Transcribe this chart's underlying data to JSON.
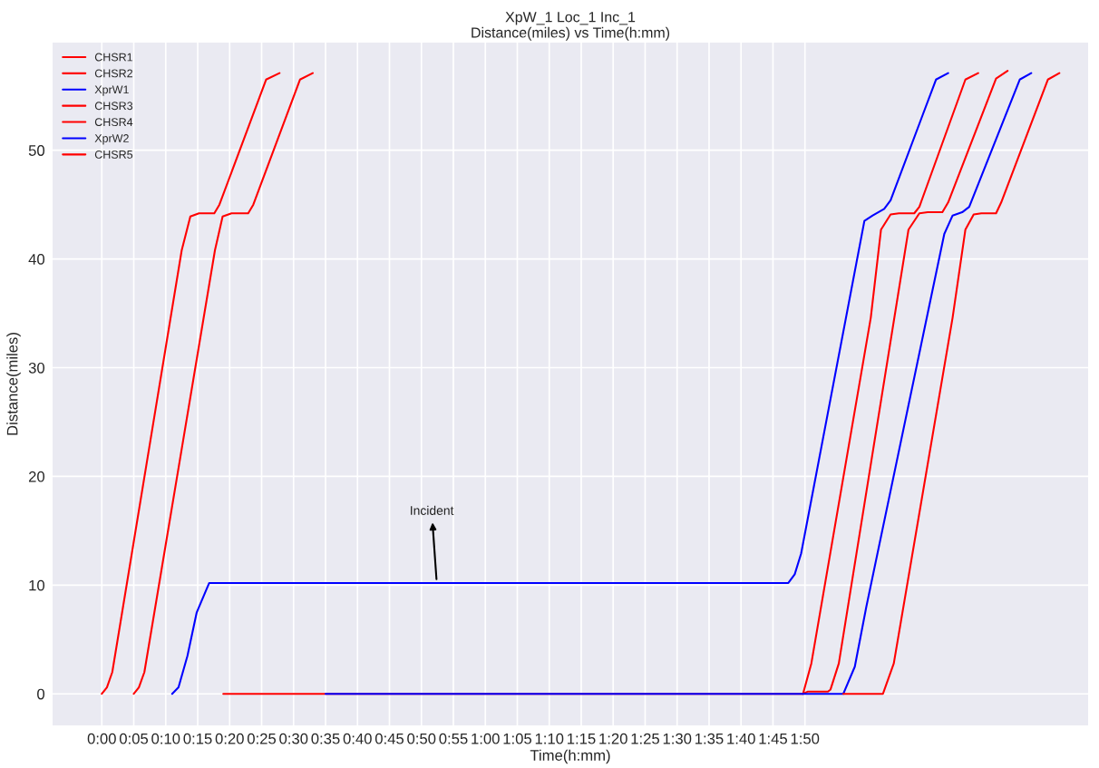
{
  "chart_data": {
    "type": "line",
    "title": "XpW_1 Loc_1 Inc_1",
    "subtitle": "Distance(miles) vs Time(h:mm)",
    "xlabel": "Time(h:mm)",
    "ylabel": "Distance(miles)",
    "xlim": [
      -7.7,
      154.3
    ],
    "ylim": [
      -2.9,
      59.9
    ],
    "xticks": [
      {
        "value": 0,
        "label": "0:00"
      },
      {
        "value": 5,
        "label": "0:05"
      },
      {
        "value": 10,
        "label": "0:10"
      },
      {
        "value": 15,
        "label": "0:15"
      },
      {
        "value": 20,
        "label": "0:20"
      },
      {
        "value": 25,
        "label": "0:25"
      },
      {
        "value": 30,
        "label": "0:30"
      },
      {
        "value": 35,
        "label": "0:35"
      },
      {
        "value": 40,
        "label": "0:40"
      },
      {
        "value": 45,
        "label": "0:45"
      },
      {
        "value": 50,
        "label": "0:50"
      },
      {
        "value": 55,
        "label": "0:55"
      },
      {
        "value": 60,
        "label": "1:00"
      },
      {
        "value": 65,
        "label": "1:05"
      },
      {
        "value": 70,
        "label": "1:10"
      },
      {
        "value": 75,
        "label": "1:15"
      },
      {
        "value": 80,
        "label": "1:20"
      },
      {
        "value": 85,
        "label": "1:25"
      },
      {
        "value": 90,
        "label": "1:30"
      },
      {
        "value": 95,
        "label": "1:35"
      },
      {
        "value": 100,
        "label": "1:40"
      },
      {
        "value": 105,
        "label": "1:45"
      },
      {
        "value": 110,
        "label": "1:50"
      }
    ],
    "yticks": [
      0,
      10,
      20,
      30,
      40,
      50
    ],
    "grid": true,
    "legend": "top left",
    "annotations": [
      {
        "text": "Incident",
        "x": 52.4,
        "y": 10.2
      }
    ],
    "series": [
      {
        "name": "CHSR1",
        "color": "#ff0000",
        "x": [
          0,
          0.8,
          1.64,
          12.5,
          13.85,
          15.2,
          17.6,
          18.4,
          25.7,
          27.8
        ],
        "values": [
          0,
          0.6,
          2.0,
          40.8,
          43.9,
          44.2,
          44.2,
          45.0,
          56.5,
          57.1
        ]
      },
      {
        "name": "CHSR2",
        "color": "#ff0000",
        "x": [
          5.0,
          5.8,
          6.66,
          17.7,
          18.9,
          20.3,
          22.9,
          23.7,
          31.0,
          33.0
        ],
        "values": [
          0,
          0.6,
          2.0,
          40.8,
          43.9,
          44.2,
          44.2,
          45.0,
          56.5,
          57.1
        ]
      },
      {
        "name": "XprW1",
        "color": "#0000ff",
        "x": [
          11.0,
          12.0,
          13.4,
          14.85,
          16.8,
          107.4,
          108.4,
          109.4,
          119.3,
          120.6,
          122.4,
          123.4,
          130.5,
          132.4
        ],
        "values": [
          0,
          0.6,
          3.5,
          7.5,
          10.2,
          10.2,
          11.0,
          12.9,
          43.5,
          44.0,
          44.6,
          45.4,
          56.5,
          57.1
        ]
      },
      {
        "name": "CHSR3",
        "color": "#ff0000",
        "x": [
          19.0,
          109.7,
          111.0,
          120.3,
          121.9,
          123.4,
          124.7,
          127.1,
          127.9,
          135.1,
          137.1
        ],
        "values": [
          0,
          0,
          2.8,
          34.6,
          42.7,
          44.1,
          44.2,
          44.2,
          44.8,
          56.5,
          57.1
        ]
      },
      {
        "name": "CHSR4",
        "color": "#ff0000",
        "x": [
          109.7,
          110.4,
          113.6,
          114.0,
          115.3,
          126.2,
          127.9,
          129.2,
          131.5,
          132.4,
          139.9,
          141.7
        ],
        "values": [
          0,
          0.2,
          0.2,
          0.4,
          2.8,
          42.7,
          44.2,
          44.3,
          44.3,
          45.2,
          56.6,
          57.3
        ]
      },
      {
        "name": "XprW2",
        "color": "#0000ff",
        "x": [
          35.0,
          116.0,
          117.8,
          119.6,
          131.8,
          133.1,
          134.6,
          135.7,
          143.6,
          145.4
        ],
        "values": [
          0,
          0,
          2.5,
          8.0,
          42.3,
          44.0,
          44.3,
          44.8,
          56.5,
          57.1
        ]
      },
      {
        "name": "CHSR5",
        "color": "#ff0000",
        "x": [
          116.0,
          122.2,
          123.9,
          133.1,
          135.1,
          136.4,
          137.6,
          139.9,
          140.7,
          148.0,
          149.8
        ],
        "values": [
          0,
          0,
          2.8,
          34.6,
          42.7,
          44.1,
          44.2,
          44.2,
          45.2,
          56.5,
          57.1
        ]
      }
    ]
  }
}
